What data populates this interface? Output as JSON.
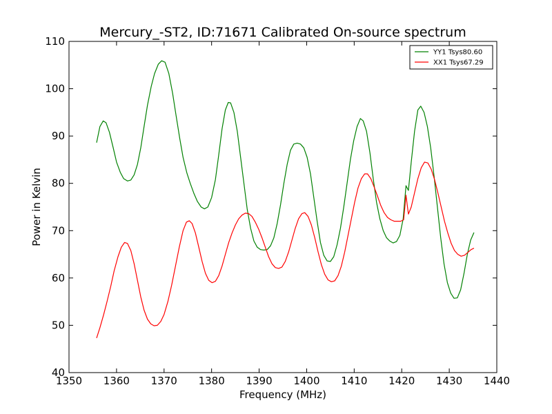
{
  "chart_data": {
    "type": "line",
    "title": "Mercury_-ST2, ID:71671 Calibrated On-source spectrum",
    "xlabel": "Frequency (MHz)",
    "ylabel": "Power in Kelvin",
    "xlim": [
      1350,
      1440
    ],
    "ylim": [
      40,
      110
    ],
    "xticks": [
      "1350",
      "1360",
      "1370",
      "1380",
      "1390",
      "1400",
      "1410",
      "1420",
      "1430",
      "1440"
    ],
    "yticks": [
      "40",
      "50",
      "60",
      "70",
      "80",
      "90",
      "100",
      "110"
    ],
    "grid": false,
    "legend_position": "top-right",
    "series": [
      {
        "name": "YY1 Tsys80.60",
        "color": "#008000",
        "points": [
          [
            1355.8,
            88.6
          ],
          [
            1356.5,
            92.0
          ],
          [
            1357.2,
            93.2
          ],
          [
            1357.8,
            92.8
          ],
          [
            1358.5,
            90.8
          ],
          [
            1359.3,
            87.5
          ],
          [
            1360.0,
            84.5
          ],
          [
            1360.8,
            82.3
          ],
          [
            1361.5,
            81.0
          ],
          [
            1362.3,
            80.5
          ],
          [
            1363.0,
            80.7
          ],
          [
            1363.7,
            81.8
          ],
          [
            1364.4,
            84.0
          ],
          [
            1365.1,
            87.5
          ],
          [
            1365.8,
            92.0
          ],
          [
            1366.5,
            96.5
          ],
          [
            1367.3,
            100.5
          ],
          [
            1368.0,
            103.2
          ],
          [
            1368.8,
            105.2
          ],
          [
            1369.5,
            105.9
          ],
          [
            1370.2,
            105.6
          ],
          [
            1371.0,
            103.2
          ],
          [
            1371.8,
            99.0
          ],
          [
            1372.5,
            94.5
          ],
          [
            1373.3,
            89.5
          ],
          [
            1374.0,
            85.5
          ],
          [
            1374.8,
            82.2
          ],
          [
            1375.5,
            80.0
          ],
          [
            1376.3,
            77.8
          ],
          [
            1377.0,
            76.2
          ],
          [
            1377.8,
            75.0
          ],
          [
            1378.5,
            74.6
          ],
          [
            1379.2,
            75.0
          ],
          [
            1380.0,
            77.0
          ],
          [
            1380.8,
            80.8
          ],
          [
            1381.5,
            86.0
          ],
          [
            1382.2,
            91.5
          ],
          [
            1382.9,
            95.5
          ],
          [
            1383.5,
            97.1
          ],
          [
            1384.0,
            97.0
          ],
          [
            1384.7,
            95.0
          ],
          [
            1385.4,
            91.0
          ],
          [
            1386.1,
            85.5
          ],
          [
            1386.8,
            80.0
          ],
          [
            1387.5,
            74.5
          ],
          [
            1388.2,
            70.5
          ],
          [
            1388.9,
            67.8
          ],
          [
            1389.6,
            66.5
          ],
          [
            1390.3,
            66.0
          ],
          [
            1391.0,
            65.9
          ],
          [
            1391.7,
            66.0
          ],
          [
            1392.4,
            66.8
          ],
          [
            1393.1,
            68.5
          ],
          [
            1393.8,
            71.5
          ],
          [
            1394.5,
            75.5
          ],
          [
            1395.2,
            80.0
          ],
          [
            1395.9,
            84.0
          ],
          [
            1396.6,
            87.0
          ],
          [
            1397.3,
            88.3
          ],
          [
            1398.0,
            88.5
          ],
          [
            1398.7,
            88.3
          ],
          [
            1399.4,
            87.5
          ],
          [
            1400.1,
            85.5
          ],
          [
            1400.8,
            82.0
          ],
          [
            1401.5,
            77.0
          ],
          [
            1402.2,
            72.0
          ],
          [
            1402.9,
            67.5
          ],
          [
            1403.6,
            64.8
          ],
          [
            1404.3,
            63.6
          ],
          [
            1405.0,
            63.5
          ],
          [
            1405.7,
            64.5
          ],
          [
            1406.4,
            67.0
          ],
          [
            1407.1,
            70.5
          ],
          [
            1407.8,
            75.0
          ],
          [
            1408.5,
            80.0
          ],
          [
            1409.2,
            85.0
          ],
          [
            1409.9,
            89.0
          ],
          [
            1410.6,
            92.0
          ],
          [
            1411.3,
            93.7
          ],
          [
            1411.9,
            93.2
          ],
          [
            1412.6,
            91.0
          ],
          [
            1413.3,
            86.5
          ],
          [
            1414.0,
            81.0
          ],
          [
            1414.7,
            76.0
          ],
          [
            1415.4,
            72.5
          ],
          [
            1416.1,
            70.0
          ],
          [
            1416.8,
            68.5
          ],
          [
            1417.5,
            67.8
          ],
          [
            1418.2,
            67.4
          ],
          [
            1418.9,
            67.7
          ],
          [
            1419.6,
            69.0
          ],
          [
            1420.3,
            72.5
          ],
          [
            1420.9,
            79.5
          ],
          [
            1421.4,
            78.5
          ],
          [
            1422.0,
            84.5
          ],
          [
            1422.7,
            91.0
          ],
          [
            1423.4,
            95.5
          ],
          [
            1424.0,
            96.3
          ],
          [
            1424.7,
            95.0
          ],
          [
            1425.4,
            92.0
          ],
          [
            1426.1,
            87.5
          ],
          [
            1426.8,
            81.5
          ],
          [
            1427.5,
            75.0
          ],
          [
            1428.2,
            68.5
          ],
          [
            1428.9,
            63.0
          ],
          [
            1429.6,
            59.0
          ],
          [
            1430.3,
            56.8
          ],
          [
            1431.0,
            55.7
          ],
          [
            1431.7,
            55.8
          ],
          [
            1432.4,
            57.5
          ],
          [
            1433.1,
            61.0
          ],
          [
            1433.8,
            65.0
          ],
          [
            1434.5,
            68.0
          ],
          [
            1435.2,
            69.6
          ]
        ]
      },
      {
        "name": "XX1 Tsys67.29",
        "color": "#ff0000",
        "points": [
          [
            1355.8,
            47.3
          ],
          [
            1356.5,
            49.5
          ],
          [
            1357.3,
            52.3
          ],
          [
            1358.0,
            55.0
          ],
          [
            1358.8,
            58.3
          ],
          [
            1359.5,
            61.5
          ],
          [
            1360.3,
            64.5
          ],
          [
            1361.0,
            66.5
          ],
          [
            1361.7,
            67.5
          ],
          [
            1362.3,
            67.3
          ],
          [
            1363.0,
            65.8
          ],
          [
            1363.7,
            63.0
          ],
          [
            1364.4,
            59.5
          ],
          [
            1365.1,
            56.0
          ],
          [
            1365.8,
            53.2
          ],
          [
            1366.5,
            51.3
          ],
          [
            1367.2,
            50.3
          ],
          [
            1367.9,
            49.9
          ],
          [
            1368.6,
            50.0
          ],
          [
            1369.3,
            50.8
          ],
          [
            1370.0,
            52.3
          ],
          [
            1370.8,
            55.0
          ],
          [
            1371.6,
            58.5
          ],
          [
            1372.4,
            62.5
          ],
          [
            1373.2,
            66.5
          ],
          [
            1374.0,
            70.0
          ],
          [
            1374.7,
            71.8
          ],
          [
            1375.3,
            72.1
          ],
          [
            1375.9,
            71.5
          ],
          [
            1376.6,
            69.5
          ],
          [
            1377.3,
            66.5
          ],
          [
            1378.0,
            63.5
          ],
          [
            1378.7,
            61.0
          ],
          [
            1379.4,
            59.5
          ],
          [
            1380.1,
            59.0
          ],
          [
            1380.8,
            59.3
          ],
          [
            1381.5,
            60.5
          ],
          [
            1382.2,
            62.5
          ],
          [
            1382.9,
            65.0
          ],
          [
            1383.6,
            67.5
          ],
          [
            1384.3,
            69.5
          ],
          [
            1385.0,
            71.2
          ],
          [
            1385.7,
            72.5
          ],
          [
            1386.4,
            73.3
          ],
          [
            1387.1,
            73.7
          ],
          [
            1387.8,
            73.6
          ],
          [
            1388.5,
            73.0
          ],
          [
            1389.2,
            71.8
          ],
          [
            1389.9,
            70.3
          ],
          [
            1390.6,
            68.5
          ],
          [
            1391.3,
            66.5
          ],
          [
            1392.0,
            64.5
          ],
          [
            1392.7,
            63.0
          ],
          [
            1393.4,
            62.2
          ],
          [
            1394.1,
            62.0
          ],
          [
            1394.8,
            62.3
          ],
          [
            1395.5,
            63.5
          ],
          [
            1396.2,
            65.5
          ],
          [
            1396.9,
            68.0
          ],
          [
            1397.6,
            70.5
          ],
          [
            1398.3,
            72.5
          ],
          [
            1399.0,
            73.6
          ],
          [
            1399.6,
            73.8
          ],
          [
            1400.3,
            73.0
          ],
          [
            1401.0,
            71.2
          ],
          [
            1401.7,
            68.5
          ],
          [
            1402.4,
            65.5
          ],
          [
            1403.1,
            62.8
          ],
          [
            1403.8,
            60.8
          ],
          [
            1404.5,
            59.6
          ],
          [
            1405.2,
            59.2
          ],
          [
            1405.9,
            59.4
          ],
          [
            1406.6,
            60.5
          ],
          [
            1407.3,
            62.5
          ],
          [
            1408.0,
            65.5
          ],
          [
            1408.7,
            69.0
          ],
          [
            1409.4,
            72.5
          ],
          [
            1410.1,
            76.0
          ],
          [
            1410.8,
            79.0
          ],
          [
            1411.5,
            81.0
          ],
          [
            1412.2,
            82.0
          ],
          [
            1412.8,
            82.0
          ],
          [
            1413.5,
            81.0
          ],
          [
            1414.2,
            79.2
          ],
          [
            1414.9,
            77.3
          ],
          [
            1415.6,
            75.3
          ],
          [
            1416.3,
            73.8
          ],
          [
            1417.0,
            72.8
          ],
          [
            1417.7,
            72.3
          ],
          [
            1418.4,
            72.0
          ],
          [
            1419.1,
            72.0
          ],
          [
            1419.8,
            72.0
          ],
          [
            1420.4,
            72.3
          ],
          [
            1420.9,
            77.5
          ],
          [
            1421.4,
            73.5
          ],
          [
            1422.0,
            75.0
          ],
          [
            1422.7,
            78.0
          ],
          [
            1423.4,
            81.0
          ],
          [
            1424.1,
            83.3
          ],
          [
            1424.8,
            84.5
          ],
          [
            1425.5,
            84.3
          ],
          [
            1426.2,
            83.0
          ],
          [
            1426.9,
            80.8
          ],
          [
            1427.6,
            78.0
          ],
          [
            1428.3,
            75.0
          ],
          [
            1429.0,
            72.0
          ],
          [
            1429.7,
            69.5
          ],
          [
            1430.4,
            67.3
          ],
          [
            1431.1,
            65.8
          ],
          [
            1431.8,
            65.0
          ],
          [
            1432.5,
            64.6
          ],
          [
            1433.2,
            64.8
          ],
          [
            1433.9,
            65.4
          ],
          [
            1434.6,
            66.0
          ],
          [
            1435.2,
            66.3
          ]
        ]
      }
    ]
  }
}
